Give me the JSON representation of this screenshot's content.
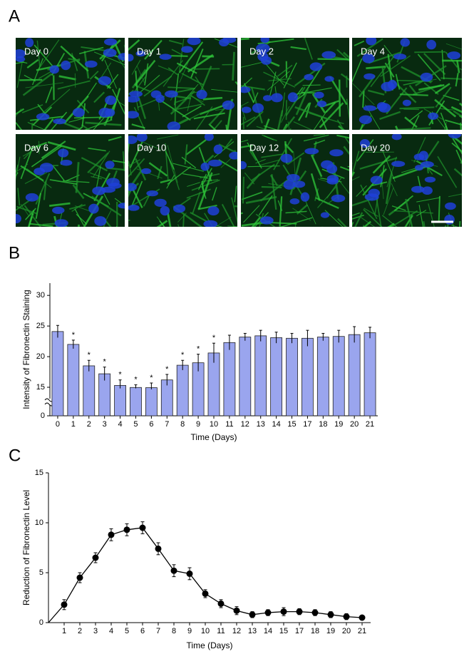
{
  "panel_labels": [
    "A",
    "B",
    "C"
  ],
  "micrographs": {
    "labels": [
      "Day 0",
      "Day 1",
      "Day 2",
      "Day 4",
      "Day 6",
      "Day 10",
      "Day 12",
      "Day 20"
    ]
  },
  "chart_data": [
    {
      "type": "bar",
      "x_label": "Time (Days)",
      "y_label": "Intensity of Fibronectin Staining",
      "categories": [
        0,
        1,
        2,
        3,
        4,
        5,
        6,
        7,
        8,
        9,
        10,
        11,
        12,
        13,
        14,
        15,
        17,
        18,
        19,
        20,
        21
      ],
      "values": [
        24.1,
        22.0,
        18.5,
        17.2,
        15.3,
        14.9,
        14.8,
        16.2,
        18.6,
        19.0,
        20.6,
        22.3,
        23.2,
        23.4,
        23.1,
        23.0,
        23.0,
        23.2,
        23.3,
        23.6,
        23.9
      ],
      "errors": [
        1.0,
        0.7,
        0.9,
        1.1,
        0.9,
        0.5,
        0.9,
        0.9,
        0.8,
        1.4,
        1.6,
        1.2,
        0.6,
        0.9,
        0.9,
        0.8,
        1.3,
        0.6,
        1.0,
        1.3,
        0.9
      ],
      "annotations": [
        null,
        "*",
        "*",
        "*",
        "*",
        "*",
        "*",
        "*",
        "*",
        "*",
        "*",
        null,
        null,
        null,
        null,
        null,
        null,
        null,
        null,
        null,
        null
      ],
      "color": "#9aa5ee",
      "ylim": [
        0,
        32
      ],
      "yticks": [
        0,
        15,
        20,
        25,
        30
      ],
      "axis_break": true
    },
    {
      "type": "line",
      "x_label": "Time (Days)",
      "y_label": "Reduction of Fibronectin Level",
      "categories": [
        null,
        1,
        2,
        3,
        4,
        5,
        6,
        7,
        8,
        9,
        10,
        11,
        12,
        13,
        14,
        15,
        17,
        18,
        19,
        20,
        21
      ],
      "values": [
        0,
        1.8,
        4.5,
        6.5,
        8.8,
        9.3,
        9.5,
        7.4,
        5.2,
        4.9,
        2.9,
        1.9,
        1.2,
        0.8,
        1.0,
        1.1,
        1.1,
        1.0,
        0.8,
        0.6,
        0.5
      ],
      "errors": [
        null,
        0.5,
        0.5,
        0.5,
        0.6,
        0.6,
        0.6,
        0.6,
        0.6,
        0.6,
        0.4,
        0.4,
        0.4,
        0.3,
        0.3,
        0.4,
        0.3,
        0.3,
        0.3,
        0.3,
        0.2
      ],
      "color": "#000000",
      "ylim": [
        0,
        15
      ],
      "yticks": [
        0,
        5,
        10,
        15
      ]
    }
  ]
}
